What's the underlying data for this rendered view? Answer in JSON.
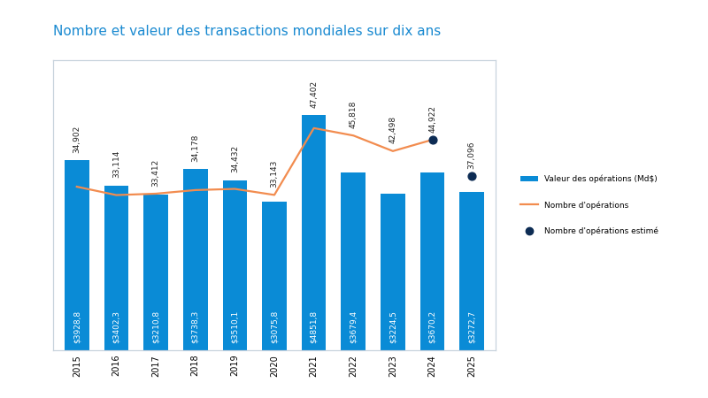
{
  "chart_data": {
    "type": "bar",
    "title": "Nombre et valeur des transactions mondiales sur dix ans",
    "categories": [
      "2015",
      "2016",
      "2017",
      "2018",
      "2019",
      "2020",
      "2021",
      "2022",
      "2023",
      "2024",
      "2025"
    ],
    "ylim": [
      0,
      6000
    ],
    "yticks": [],
    "y2lim": [
      0,
      62000
    ],
    "y2ticks": [],
    "tick_labels": "x",
    "legend": "center left",
    "series": [
      {
        "name": "Valeur des opérations (Md$)",
        "type": "bar",
        "color": "#0a8bd6",
        "values": [
          3928.8,
          3402.3,
          3210.8,
          3738.3,
          3510.1,
          3075.8,
          4851.8,
          3679.4,
          3224.5,
          3670.2,
          3272.7
        ],
        "value_labels": [
          "$3928,8",
          "$3402,3",
          "$3210,8",
          "$3738,3",
          "$3510,1",
          "$3075,8",
          "$4851,8",
          "$3679,4",
          "$3224,5",
          "$3670,2",
          "$3272,7"
        ],
        "data_labels": true
      },
      {
        "name": "Nombre d'opérations",
        "type": "line",
        "axis": "y2",
        "color": "#f28c4f",
        "line_style": "solid",
        "values": [
          34902,
          33114,
          33412,
          34178,
          34432,
          33143,
          47402,
          45818,
          42498,
          44922,
          null
        ],
        "value_labels": [
          "34,902",
          "33,114",
          "33,412",
          "34,178",
          "34,432",
          "33,143",
          "47,402",
          "45,818",
          "42,498",
          null,
          null
        ],
        "data_labels": true
      },
      {
        "name": "Nombre d'opérations estimé",
        "type": "scatter",
        "axis": "y2",
        "color": "#0d2c54",
        "marker": "o",
        "values": [
          null,
          null,
          null,
          null,
          null,
          null,
          null,
          null,
          null,
          44922,
          37096
        ],
        "value_labels": [
          null,
          null,
          null,
          null,
          null,
          null,
          null,
          null,
          null,
          "44,922",
          "37,096"
        ],
        "data_labels": true
      }
    ]
  }
}
